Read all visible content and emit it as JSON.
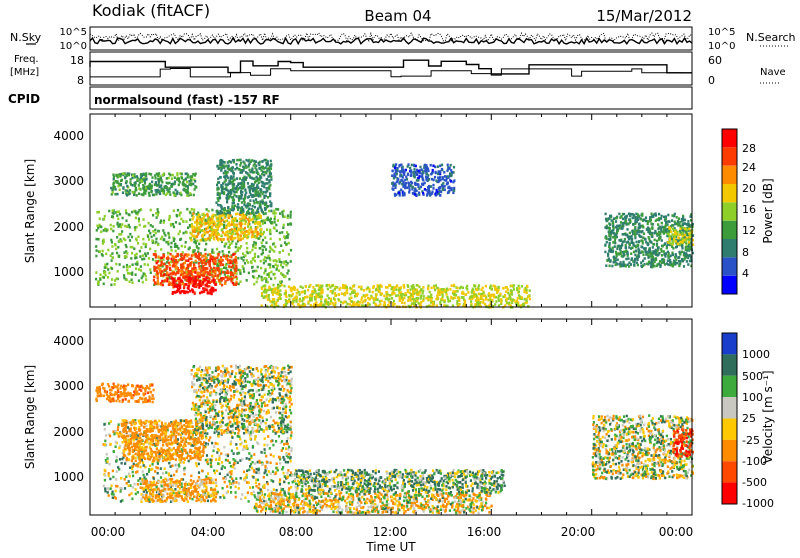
{
  "header": {
    "station": "Kodiak (fitACF)",
    "beam": "Beam 04",
    "date": "15/Mar/2012"
  },
  "strip_panels": {
    "left_labels": {
      "nsky": "N.Sky",
      "freq_line1": "Freq.",
      "freq_line2": "[MHz]",
      "cpid": "CPID"
    },
    "right_labels": {
      "nsearch": "N.Search",
      "nave": "Nave"
    },
    "noise_ticks_left": [
      "10^5",
      "10^0"
    ],
    "noise_ticks_right": [
      "10^5",
      "10^0"
    ],
    "freq_ticks": [
      "18",
      "8"
    ],
    "nave_ticks": [
      "60",
      "0"
    ],
    "cpid_text": "normalsound (fast) -157 RF"
  },
  "power_panel": {
    "ylabel": "Slant Range [km]",
    "yticks": [
      "4000",
      "3000",
      "2000",
      "1000"
    ],
    "colorbar_title": "Power [dB]",
    "colorbar_ticks": [
      "28",
      "24",
      "20",
      "16",
      "12",
      "8",
      "4"
    ],
    "colorbar_colors": [
      "#0000ff",
      "#2a52c8",
      "#2e7d6e",
      "#3c9c3c",
      "#8fcf2a",
      "#f2c800",
      "#ff8c00",
      "#ff3c00",
      "#ff0000"
    ]
  },
  "velocity_panel": {
    "ylabel": "Slant Range [km]",
    "yticks": [
      "4000",
      "3000",
      "2000",
      "1000"
    ],
    "colorbar_title": "Velocity [m s⁻¹]",
    "colorbar_ticks": [
      "1000",
      "500",
      "100",
      "25",
      "-25",
      "-100",
      "-500",
      "-1000"
    ],
    "colorbar_colors": [
      "#1a3ecc",
      "#2e6e5a",
      "#3caa3c",
      "#c8c8c0",
      "#ffc800",
      "#ff8c00",
      "#ff4800",
      "#ff0000"
    ]
  },
  "x_axis": {
    "ticks": [
      "00:00",
      "04:00",
      "08:00",
      "12:00",
      "16:00",
      "20:00",
      "00:00"
    ],
    "label": "Time UT"
  },
  "chart_data": [
    {
      "type": "heatmap",
      "quantity": "Power [dB]",
      "ylabel": "Slant Range [km]",
      "xlabel": "Time UT",
      "xlim": [
        0,
        24
      ],
      "ylim": [
        180,
        4500
      ],
      "clim": [
        0,
        32
      ],
      "color_ticks": [
        4,
        8,
        12,
        16,
        20,
        24,
        28
      ],
      "regions": [
        {
          "t": [
            0.2,
            8.0
          ],
          "r": [
            700,
            2400
          ],
          "value": 14
        },
        {
          "t": [
            0.8,
            4.2
          ],
          "r": [
            2700,
            3200
          ],
          "value": 12
        },
        {
          "t": [
            2.5,
            5.8
          ],
          "r": [
            700,
            1400
          ],
          "value": 26
        },
        {
          "t": [
            3.2,
            5.0
          ],
          "r": [
            500,
            900
          ],
          "value": 30
        },
        {
          "t": [
            4.0,
            6.8
          ],
          "r": [
            1700,
            2300
          ],
          "value": 20
        },
        {
          "t": [
            5.0,
            7.2
          ],
          "r": [
            2300,
            3500
          ],
          "value": 10
        },
        {
          "t": [
            6.8,
            17.5
          ],
          "r": [
            200,
            700
          ],
          "value": 18
        },
        {
          "t": [
            12.0,
            14.5
          ],
          "r": [
            2700,
            3400
          ],
          "value": 6
        },
        {
          "t": [
            20.5,
            24.0
          ],
          "r": [
            1100,
            2300
          ],
          "value": 10
        },
        {
          "t": [
            23.0,
            24.0
          ],
          "r": [
            1600,
            2000
          ],
          "value": 18
        }
      ]
    },
    {
      "type": "heatmap",
      "quantity": "Velocity [m s-1]",
      "ylabel": "Slant Range [km]",
      "xlabel": "Time UT",
      "xlim": [
        0,
        24
      ],
      "ylim": [
        180,
        4500
      ],
      "clim": [
        -1000,
        1000
      ],
      "color_ticks": [
        1000,
        500,
        100,
        25,
        -25,
        -100,
        -500,
        -1000
      ],
      "regions": [
        {
          "t": [
            0.2,
            2.5
          ],
          "r": [
            2700,
            3100
          ],
          "value": -400
        },
        {
          "t": [
            0.5,
            8.0
          ],
          "r": [
            500,
            2300
          ],
          "value": 0
        },
        {
          "t": [
            1.2,
            4.5
          ],
          "r": [
            1400,
            2300
          ],
          "value": -200
        },
        {
          "t": [
            2.0,
            5.0
          ],
          "r": [
            500,
            1000
          ],
          "value": -150
        },
        {
          "t": [
            4.0,
            8.0
          ],
          "r": [
            2000,
            3500
          ],
          "value": 0
        },
        {
          "t": [
            6.5,
            16.0
          ],
          "r": [
            250,
            700
          ],
          "value": -60
        },
        {
          "t": [
            8.0,
            16.5
          ],
          "r": [
            700,
            1200
          ],
          "value": 80
        },
        {
          "t": [
            20.0,
            24.0
          ],
          "r": [
            1000,
            2400
          ],
          "value": 0
        },
        {
          "t": [
            23.2,
            24.0
          ],
          "r": [
            1500,
            2100
          ],
          "value": -800
        }
      ]
    }
  ]
}
